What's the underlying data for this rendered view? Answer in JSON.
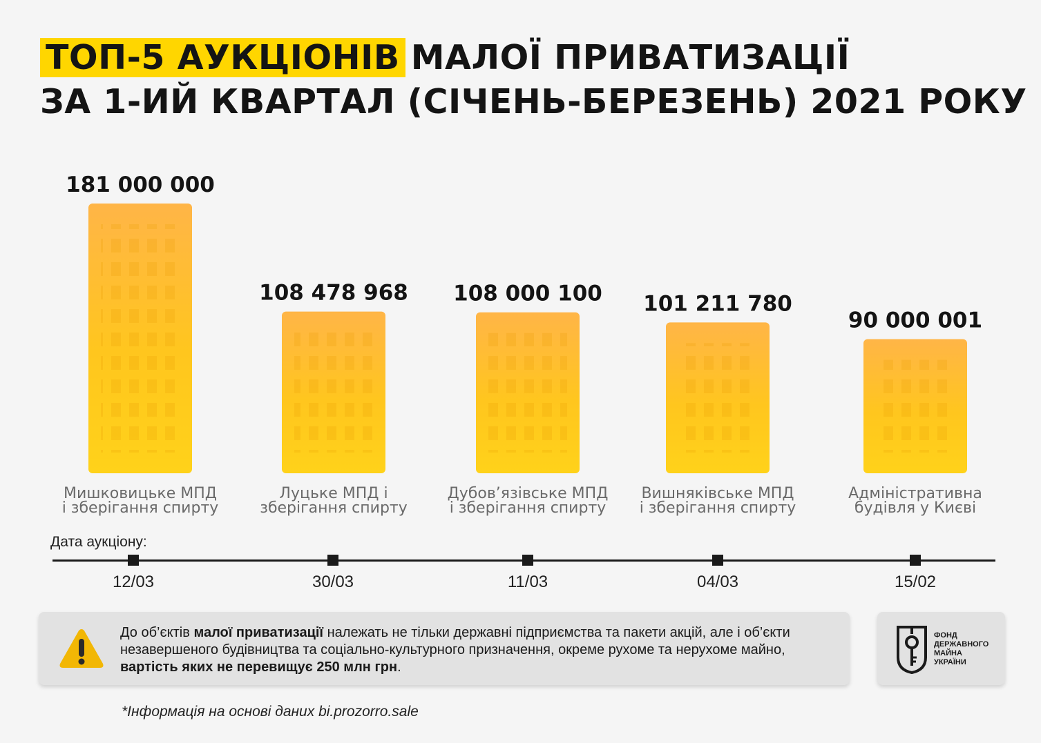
{
  "header": {
    "title_highlight": "ТОП-5 АУКЦІОНІВ",
    "title_rest": "МАЛОЇ ПРИВАТИЗАЦІЇ",
    "title_line2": "ЗА 1-ИЙ КВАРТАЛ (СІЧЕНЬ-БЕРЕЗЕНЬ) 2021 РОКУ",
    "highlight_color": "#ffd600"
  },
  "chart_data": {
    "type": "bar",
    "title": "ТОП-5 АУКЦІОНІВ МАЛОЇ ПРИВАТИЗАЦІЇ ЗА 1-ИЙ КВАРТАЛ (СІЧЕНЬ-БЕРЕЗЕНЬ) 2021 РОКУ",
    "categories": [
      [
        "Мишковицьке МПД",
        "і зберігання спирту"
      ],
      [
        "Луцьке МПД і",
        "зберігання спирту"
      ],
      [
        "Дубов’язівське МПД",
        "і зберігання спирту"
      ],
      [
        "Вишняківське МПД",
        "і зберігання спирту"
      ],
      [
        "Адміністративна",
        "будівля у Києві"
      ]
    ],
    "values": [
      181000000,
      108478968,
      108000100,
      101211780,
      90000001
    ],
    "value_labels": [
      "181 000 000",
      "108 478 968",
      "108 000 100",
      "101 211 780",
      "90 000 001"
    ],
    "bar_color": "#ffc21a",
    "bar_color_top": "#ffb347",
    "grid": false,
    "legend": "none"
  },
  "timeline": {
    "caption": "Дата аукціону:",
    "dates": [
      "12/03",
      "30/03",
      "11/03",
      "04/03",
      "15/02"
    ]
  },
  "note": {
    "icon": "warning-icon",
    "warning_color": "#f2b705",
    "p1": "До об’єктів ",
    "b1": "малої приватизації",
    "p2": " належать не тільки державні підприємства та пакети акцій, але і об’єкти незавершеного будівництва та соціально-культурного призначення, окреме рухоме та нерухоме майно, ",
    "b2": "вартість яких не перевищує 250 млн грн",
    "p3": "."
  },
  "logo": {
    "icon": "fdmu-emblem-icon",
    "lines": [
      "ФОНД",
      "ДЕРЖАВНОГО",
      "МАЙНА",
      "УКРАЇНИ"
    ]
  },
  "source": "*Інформація на основі даних bi.prozorro.sale"
}
